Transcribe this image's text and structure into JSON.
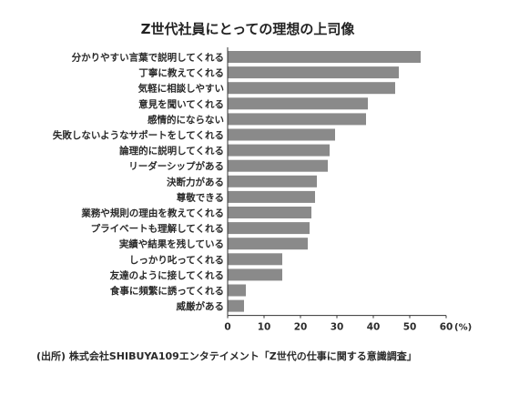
{
  "chart_data": {
    "type": "bar",
    "orientation": "horizontal",
    "title": "Z世代社員にとっての理想の上司像",
    "categories": [
      "分かりやすい言葉で説明してくれる",
      "丁寧に教えてくれる",
      "気軽に相談しやすい",
      "意見を聞いてくれる",
      "感情的にならない",
      "失敗しないようなサポートをしてくれる",
      "論理的に説明してくれる",
      "リーダーシップがある",
      "決断力がある",
      "尊敬できる",
      "業務や規則の理由を教えてくれる",
      "プライベートも理解してくれる",
      "実績や結果を残している",
      "しっかり叱ってくれる",
      "友達のように接してくれる",
      "食事に頻繁に誘ってくれる",
      "威厳がある"
    ],
    "values": [
      53,
      47,
      46,
      38.5,
      38,
      29.5,
      28,
      27.5,
      24.5,
      24,
      23,
      22.5,
      22,
      15,
      15,
      5,
      4.5
    ],
    "xlim": [
      0,
      60
    ],
    "xticks": [
      "0",
      "10",
      "20",
      "30",
      "40",
      "50",
      "60"
    ],
    "unit": "(%)",
    "grid": false,
    "bar_color": "#8a8a8a",
    "source": "(出所) 株式会社SHIBUYA109エンタテイメント「Z世代の仕事に関する意識調査」"
  }
}
